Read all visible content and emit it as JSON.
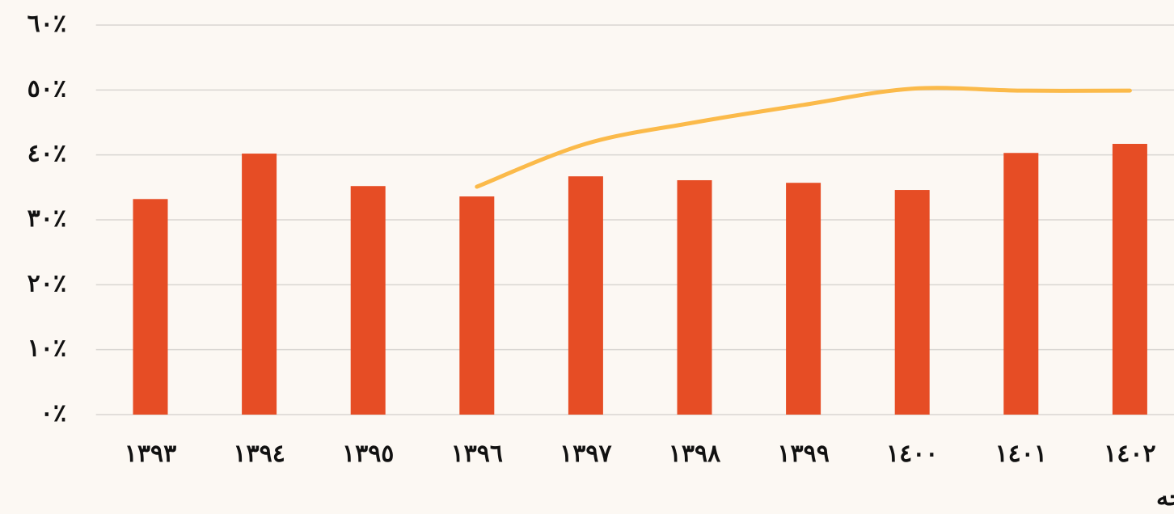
{
  "chart_data": {
    "type": "bar",
    "x_label": "لایحه",
    "categories": [
      "١٣٩٣",
      "١٣٩٤",
      "١٣٩٥",
      "١٣٩٦",
      "١٣٩٧",
      "١٣٩٨",
      "١٣٩٩",
      "١٤٠٠",
      "١٤٠١",
      "١٤٠٢"
    ],
    "series": [
      {
        "type": "bar",
        "color": "#e64d25",
        "values": [
          33.2,
          40.2,
          35.2,
          33.6,
          36.7,
          36.1,
          35.7,
          34.6,
          40.3,
          41.7
        ]
      },
      {
        "type": "line",
        "color": "#fbba4a",
        "values": [
          null,
          null,
          null,
          35.1,
          41.7,
          45.0,
          47.7,
          50.2,
          49.9,
          49.9
        ]
      }
    ],
    "ylim": [
      0,
      60
    ],
    "yticks": [
      {
        "value": 0,
        "label": "٠٪"
      },
      {
        "value": 10,
        "label": "١٠٪"
      },
      {
        "value": 20,
        "label": "٢٠٪"
      },
      {
        "value": 30,
        "label": "٣٠٪"
      },
      {
        "value": 40,
        "label": "٤٠٪"
      },
      {
        "value": 50,
        "label": "٥٠٪"
      },
      {
        "value": 60,
        "label": "٦٠٪"
      }
    ],
    "grid": true
  }
}
